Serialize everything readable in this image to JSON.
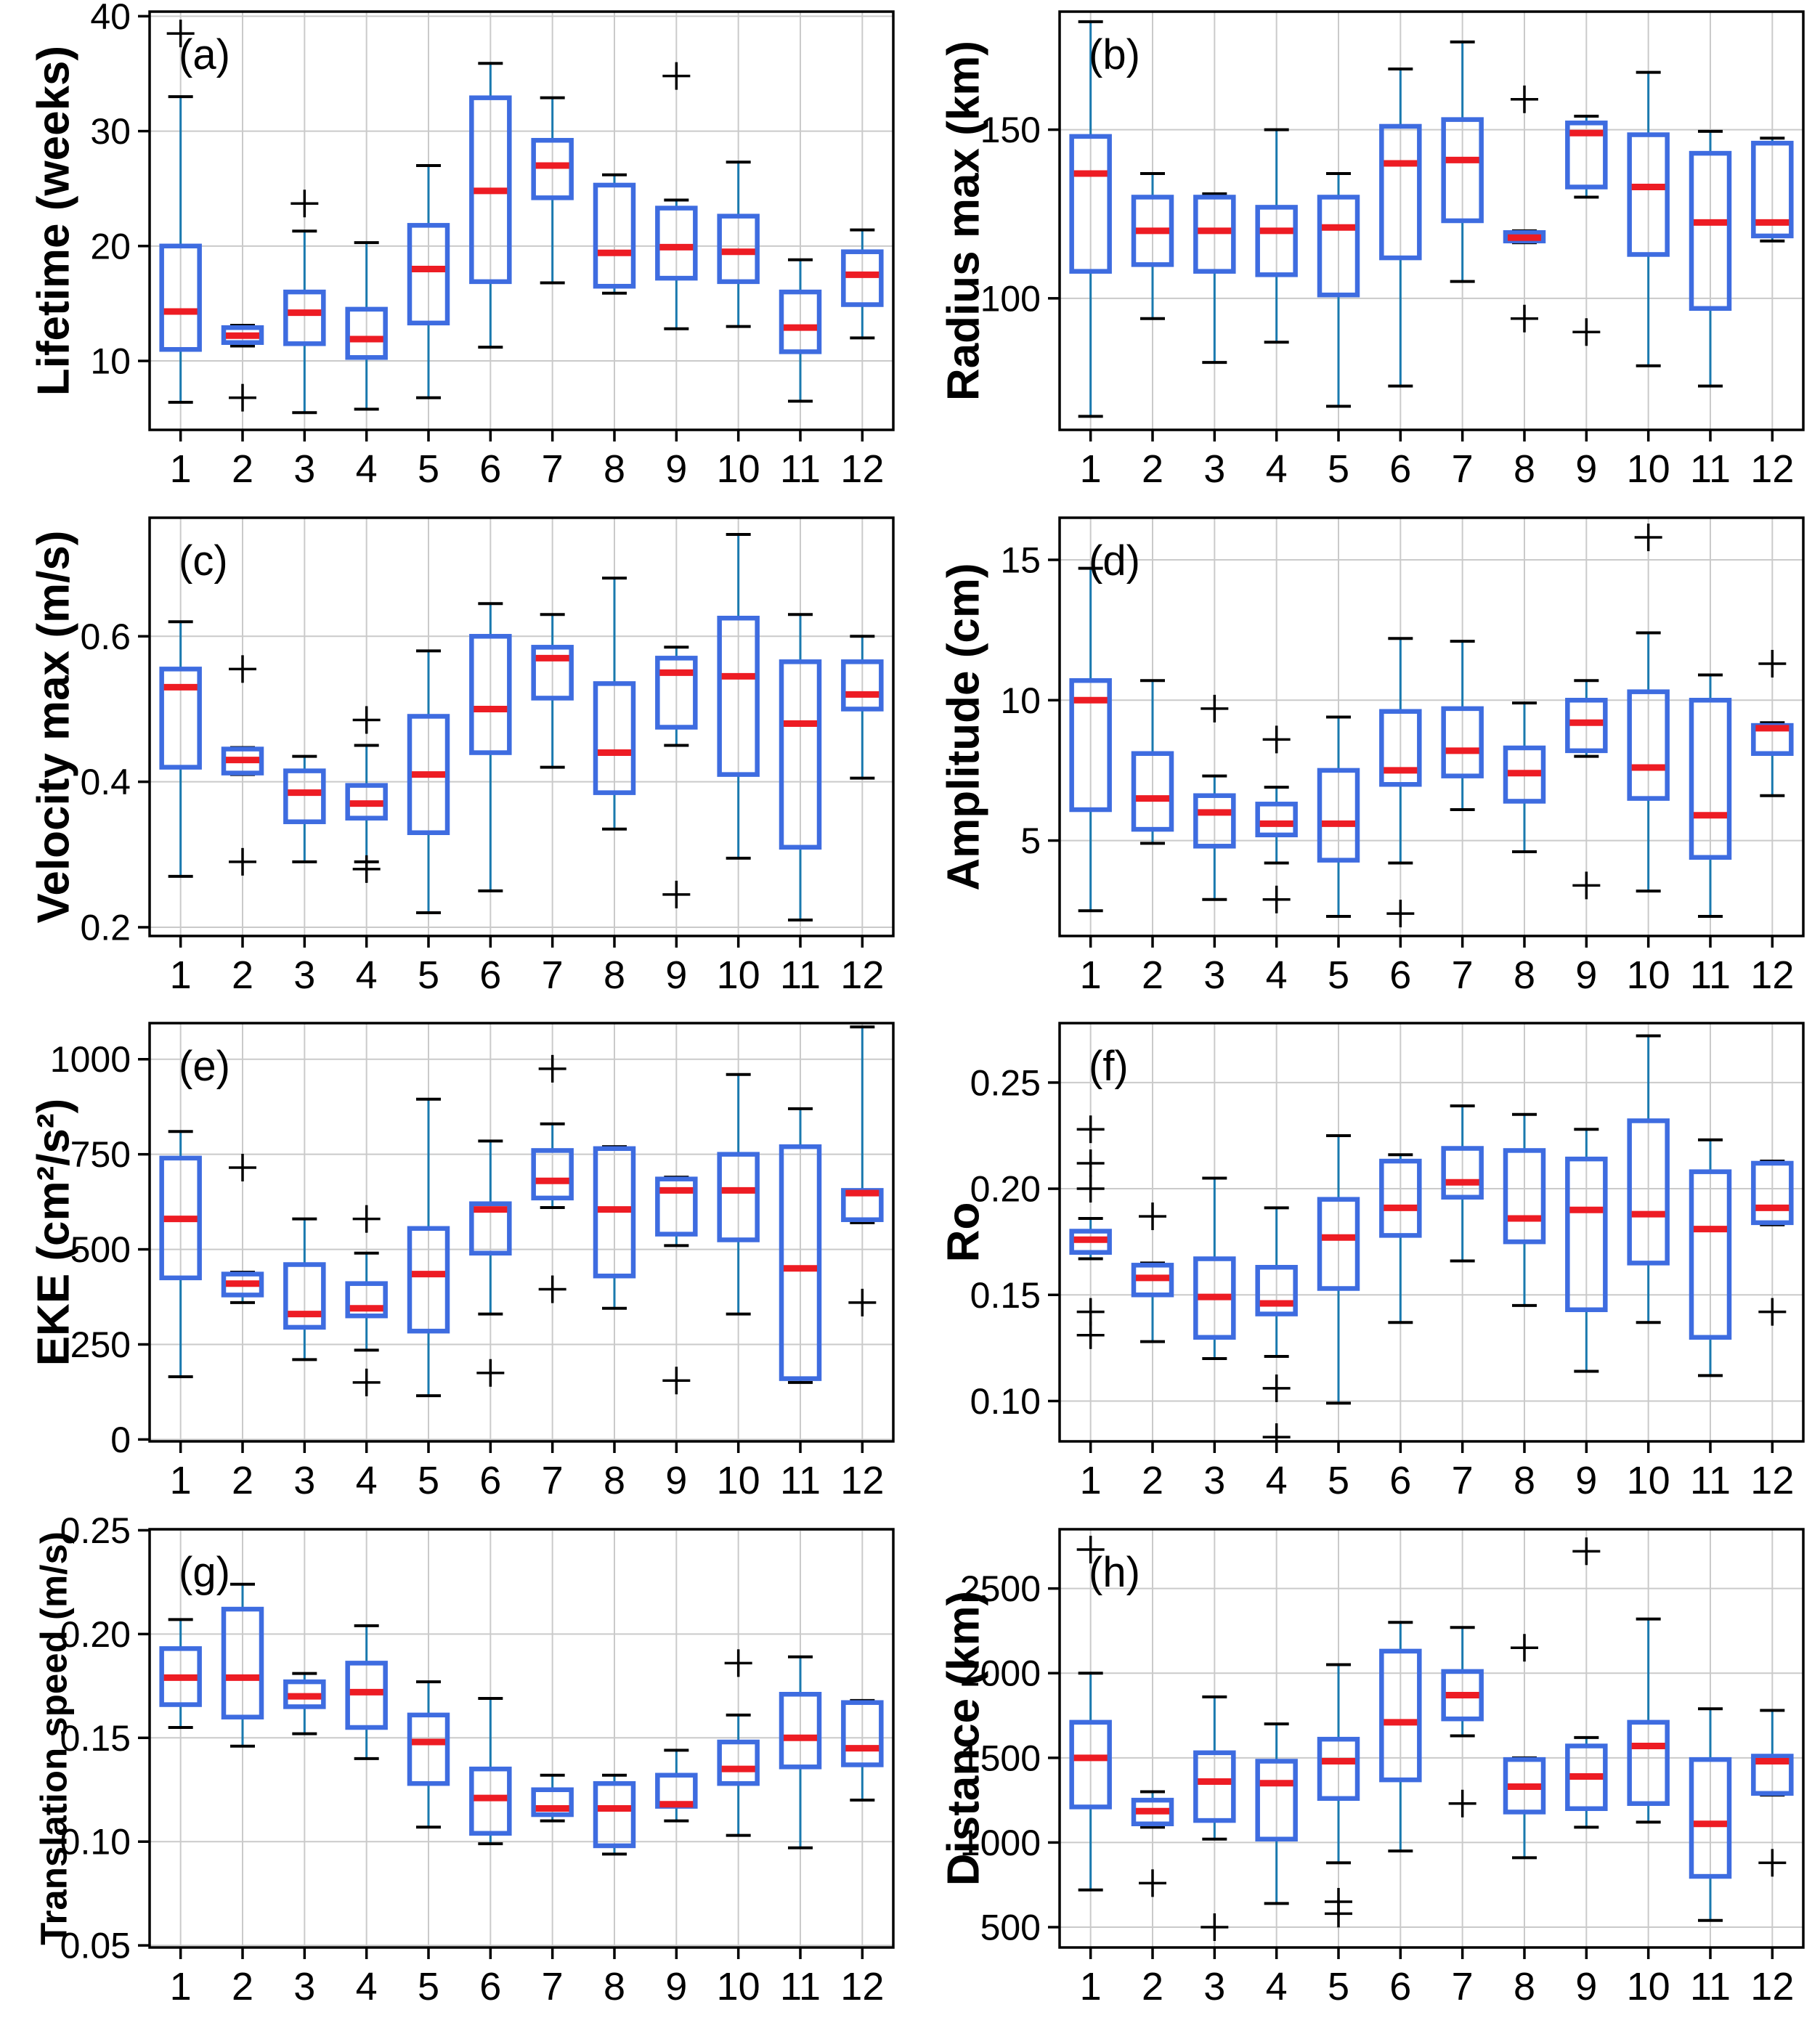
{
  "chart_data": {
    "type": "bar",
    "note": "monthly box-and-whisker statistics, 8 panels; boxes = [whisker_low, q1, median, q3, whisker_high]",
    "categories": [
      "1",
      "2",
      "3",
      "4",
      "5",
      "6",
      "7",
      "8",
      "9",
      "10",
      "11",
      "12"
    ],
    "style": {
      "box_color": "#3e6ce0",
      "median_color": "#ed1c24",
      "whisker_color": "#1a79ae",
      "cap_color": "#000000",
      "outlier_color": "#000000",
      "grid_color": "#cacaca",
      "axis_color": "#000000"
    },
    "panels": [
      {
        "key": "a",
        "letter": "(a)",
        "ylabel": "Lifetime (weeks)",
        "ymin": 4,
        "ymax": 40.4,
        "ytick_vals": [
          10,
          20,
          30,
          40
        ],
        "ytick_labels": [
          "10",
          "20",
          "30",
          "40"
        ],
        "boxes": [
          [
            6.4,
            11,
            14.3,
            20,
            33
          ],
          [
            11.3,
            11.6,
            12.2,
            12.9,
            13.1
          ],
          [
            5.5,
            11.5,
            14.2,
            16,
            21.3
          ],
          [
            5.8,
            10.3,
            11.9,
            14.5,
            20.3
          ],
          [
            6.8,
            13.3,
            18,
            21.8,
            27
          ],
          [
            11.2,
            16.9,
            24.8,
            32.9,
            35.9
          ],
          [
            16.8,
            24.2,
            27,
            29.2,
            32.9
          ],
          [
            15.9,
            16.5,
            19.4,
            25.3,
            26.2
          ],
          [
            12.8,
            17.2,
            19.9,
            23.3,
            24
          ],
          [
            13,
            16.9,
            19.5,
            22.6,
            27.3
          ],
          [
            6.5,
            10.8,
            12.9,
            16,
            18.8
          ],
          [
            12,
            14.9,
            17.5,
            19.5,
            21.4
          ]
        ],
        "outliers": [
          [
            38.5
          ],
          [
            6.8
          ],
          [
            23.7
          ],
          [],
          [],
          [],
          [],
          [],
          [
            34.8
          ],
          [],
          [],
          []
        ]
      },
      {
        "key": "b",
        "letter": "(b)",
        "ylabel": "Radius max (km)",
        "ymin": 61,
        "ymax": 185,
        "ytick_vals": [
          100,
          150
        ],
        "ytick_labels": [
          "100",
          "150"
        ],
        "boxes": [
          [
            65,
            108,
            137,
            148,
            182
          ],
          [
            94,
            110,
            120,
            130,
            137
          ],
          [
            81,
            108,
            120,
            130,
            131
          ],
          [
            87,
            107,
            120,
            127,
            150
          ],
          [
            68,
            101,
            121,
            130,
            137
          ],
          [
            74,
            112,
            140,
            151,
            168
          ],
          [
            105,
            123,
            141,
            153,
            176
          ],
          [
            116.5,
            117,
            118,
            119.5,
            120
          ],
          [
            130,
            133,
            149,
            152,
            154
          ],
          [
            80,
            113,
            133,
            148.5,
            167
          ],
          [
            74,
            97,
            122.5,
            143,
            149.5
          ],
          [
            117,
            118.5,
            122.5,
            146,
            147.5
          ]
        ],
        "outliers": [
          [],
          [],
          [],
          [],
          [],
          [],
          [],
          [
            159,
            94
          ],
          [
            90
          ],
          [],
          [],
          []
        ]
      },
      {
        "key": "c",
        "letter": "(c)",
        "ylabel": "Velocity max (m/s)",
        "ymin": 0.188,
        "ymax": 0.763,
        "ytick_vals": [
          0.2,
          0.4,
          0.6
        ],
        "ytick_labels": [
          "0.2",
          "0.4",
          "0.6"
        ],
        "boxes": [
          [
            0.27,
            0.42,
            0.53,
            0.555,
            0.62
          ],
          [
            0.41,
            0.412,
            0.43,
            0.445,
            0.447
          ],
          [
            0.29,
            0.345,
            0.385,
            0.415,
            0.435
          ],
          [
            0.29,
            0.35,
            0.37,
            0.395,
            0.45
          ],
          [
            0.22,
            0.33,
            0.41,
            0.49,
            0.58
          ],
          [
            0.25,
            0.44,
            0.5,
            0.6,
            0.645
          ],
          [
            0.42,
            0.515,
            0.57,
            0.585,
            0.63
          ],
          [
            0.335,
            0.385,
            0.44,
            0.535,
            0.68
          ],
          [
            0.45,
            0.475,
            0.55,
            0.57,
            0.585
          ],
          [
            0.295,
            0.41,
            0.545,
            0.625,
            0.74
          ],
          [
            0.21,
            0.31,
            0.48,
            0.565,
            0.63
          ],
          [
            0.405,
            0.5,
            0.52,
            0.565,
            0.6
          ]
        ],
        "outliers": [
          [],
          [
            0.555,
            0.29
          ],
          [],
          [
            0.485,
            0.28
          ],
          [],
          [],
          [],
          [],
          [
            0.245
          ],
          [],
          [],
          []
        ]
      },
      {
        "key": "d",
        "letter": "(d)",
        "ylabel": "Amplitude (cm)",
        "ymin": 1.6,
        "ymax": 16.5,
        "ytick_vals": [
          5,
          10,
          15
        ],
        "ytick_labels": [
          "5",
          "10",
          "15"
        ],
        "boxes": [
          [
            2.5,
            6.1,
            10.0,
            10.7,
            14.7
          ],
          [
            4.9,
            5.4,
            6.5,
            8.1,
            10.7
          ],
          [
            2.9,
            4.8,
            6.0,
            6.6,
            7.3
          ],
          [
            4.2,
            5.2,
            5.6,
            6.3,
            6.9
          ],
          [
            2.3,
            4.3,
            5.6,
            7.5,
            9.4
          ],
          [
            4.2,
            7.0,
            7.5,
            9.6,
            12.2
          ],
          [
            6.1,
            7.3,
            8.2,
            9.7,
            12.1
          ],
          [
            4.6,
            6.4,
            7.4,
            8.3,
            9.9
          ],
          [
            8.0,
            8.2,
            9.2,
            10.0,
            10.7
          ],
          [
            3.2,
            6.5,
            7.6,
            10.3,
            12.4
          ],
          [
            2.3,
            4.4,
            5.9,
            10.0,
            10.9
          ],
          [
            6.6,
            8.1,
            9.0,
            9.1,
            9.2
          ]
        ],
        "outliers": [
          [],
          [],
          [
            9.7
          ],
          [
            8.6,
            2.9
          ],
          [],
          [
            2.4
          ],
          [],
          [],
          [
            3.4
          ],
          [
            15.8
          ],
          [],
          [
            11.3
          ]
        ]
      },
      {
        "key": "e",
        "letter": "(e)",
        "ylabel": "EKE (cm²/s²)",
        "ymin": -5,
        "ymax": 1095,
        "ytick_vals": [
          0,
          250,
          500,
          750,
          1000
        ],
        "ytick_labels": [
          "0",
          "250",
          "500",
          "750",
          "1000"
        ],
        "boxes": [
          [
            165,
            425,
            580,
            740,
            810
          ],
          [
            360,
            380,
            410,
            435,
            440
          ],
          [
            210,
            295,
            330,
            460,
            580
          ],
          [
            235,
            325,
            345,
            410,
            490
          ],
          [
            115,
            285,
            435,
            555,
            895
          ],
          [
            330,
            490,
            605,
            620,
            785
          ],
          [
            610,
            635,
            680,
            760,
            830
          ],
          [
            345,
            430,
            605,
            765,
            770
          ],
          [
            510,
            540,
            655,
            685,
            690
          ],
          [
            330,
            525,
            655,
            750,
            960
          ],
          [
            150,
            160,
            450,
            770,
            870
          ],
          [
            570,
            578,
            648,
            655,
            1085
          ]
        ],
        "outliers": [
          [],
          [
            715
          ],
          [],
          [
            580,
            150
          ],
          [],
          [
            175
          ],
          [
            975,
            395
          ],
          [],
          [
            155
          ],
          [],
          [],
          [
            360
          ]
        ]
      },
      {
        "key": "f",
        "letter": "(f)",
        "ylabel": "Ro",
        "ymin": 0.081,
        "ymax": 0.278,
        "ytick_vals": [
          0.1,
          0.15,
          0.2,
          0.25
        ],
        "ytick_labels": [
          "0.10",
          "0.15",
          "0.20",
          "0.25"
        ],
        "boxes": [
          [
            0.167,
            0.17,
            0.176,
            0.18,
            0.186
          ],
          [
            0.128,
            0.15,
            0.158,
            0.164,
            0.165
          ],
          [
            0.12,
            0.13,
            0.149,
            0.167,
            0.205
          ],
          [
            0.121,
            0.141,
            0.146,
            0.163,
            0.191
          ],
          [
            0.099,
            0.153,
            0.177,
            0.195,
            0.225
          ],
          [
            0.137,
            0.178,
            0.191,
            0.213,
            0.216
          ],
          [
            0.166,
            0.196,
            0.203,
            0.219,
            0.239
          ],
          [
            0.145,
            0.175,
            0.186,
            0.218,
            0.235
          ],
          [
            0.114,
            0.143,
            0.19,
            0.214,
            0.228
          ],
          [
            0.137,
            0.165,
            0.188,
            0.232,
            0.272
          ],
          [
            0.112,
            0.13,
            0.181,
            0.208,
            0.223
          ],
          [
            0.183,
            0.184,
            0.191,
            0.212,
            0.213
          ]
        ],
        "outliers": [
          [
            0.228,
            0.212,
            0.2,
            0.142,
            0.131
          ],
          [
            0.187
          ],
          [],
          [
            0.106,
            0.083
          ],
          [],
          [],
          [],
          [],
          [],
          [],
          [],
          [
            0.142
          ]
        ]
      },
      {
        "key": "g",
        "letter": "(g)",
        "ylabel": "Translation speed (m/s)",
        "ymin": 0.049,
        "ymax": 0.2505,
        "ytick_vals": [
          0.05,
          0.1,
          0.15,
          0.2,
          0.25
        ],
        "ytick_labels": [
          "0.05",
          "0.10",
          "0.15",
          "0.20",
          "0.25"
        ],
        "boxes": [
          [
            0.155,
            0.166,
            0.179,
            0.193,
            0.207
          ],
          [
            0.146,
            0.16,
            0.179,
            0.212,
            0.224
          ],
          [
            0.152,
            0.165,
            0.17,
            0.177,
            0.181
          ],
          [
            0.14,
            0.155,
            0.172,
            0.186,
            0.204
          ],
          [
            0.107,
            0.128,
            0.148,
            0.161,
            0.177
          ],
          [
            0.099,
            0.104,
            0.121,
            0.135,
            0.169
          ],
          [
            0.11,
            0.113,
            0.116,
            0.125,
            0.132
          ],
          [
            0.094,
            0.098,
            0.116,
            0.128,
            0.132
          ],
          [
            0.11,
            0.117,
            0.118,
            0.132,
            0.144
          ],
          [
            0.103,
            0.128,
            0.135,
            0.148,
            0.161
          ],
          [
            0.097,
            0.136,
            0.15,
            0.171,
            0.189
          ],
          [
            0.12,
            0.137,
            0.145,
            0.167,
            0.168
          ]
        ],
        "outliers": [
          [],
          [],
          [],
          [],
          [],
          [],
          [],
          [],
          [],
          [
            0.186
          ],
          [],
          []
        ]
      },
      {
        "key": "h",
        "letter": "(h)",
        "ylabel": "Distance (km)",
        "ymin": 380,
        "ymax": 2850,
        "ytick_vals": [
          500,
          1000,
          1500,
          2000,
          2500
        ],
        "ytick_labels": [
          "500",
          "1000",
          "1500",
          "2000",
          "2500"
        ],
        "boxes": [
          [
            720,
            1210,
            1500,
            1710,
            2000
          ],
          [
            1090,
            1110,
            1185,
            1250,
            1300
          ],
          [
            1020,
            1130,
            1360,
            1530,
            1860
          ],
          [
            640,
            1020,
            1350,
            1480,
            1700
          ],
          [
            880,
            1260,
            1480,
            1610,
            2050
          ],
          [
            950,
            1370,
            1710,
            2130,
            2300
          ],
          [
            1630,
            1730,
            1870,
            2010,
            2270
          ],
          [
            910,
            1180,
            1330,
            1490,
            1500
          ],
          [
            1090,
            1200,
            1390,
            1570,
            1620
          ],
          [
            1120,
            1230,
            1570,
            1710,
            2320
          ],
          [
            540,
            800,
            1110,
            1490,
            1790
          ],
          [
            1280,
            1290,
            1480,
            1510,
            1780
          ]
        ],
        "outliers": [
          [
            2730
          ],
          [
            760
          ],
          [
            500
          ],
          [],
          [
            650,
            580
          ],
          [],
          [
            1230
          ],
          [
            2150
          ],
          [
            2720
          ],
          [],
          [],
          [
            880
          ]
        ]
      }
    ]
  }
}
